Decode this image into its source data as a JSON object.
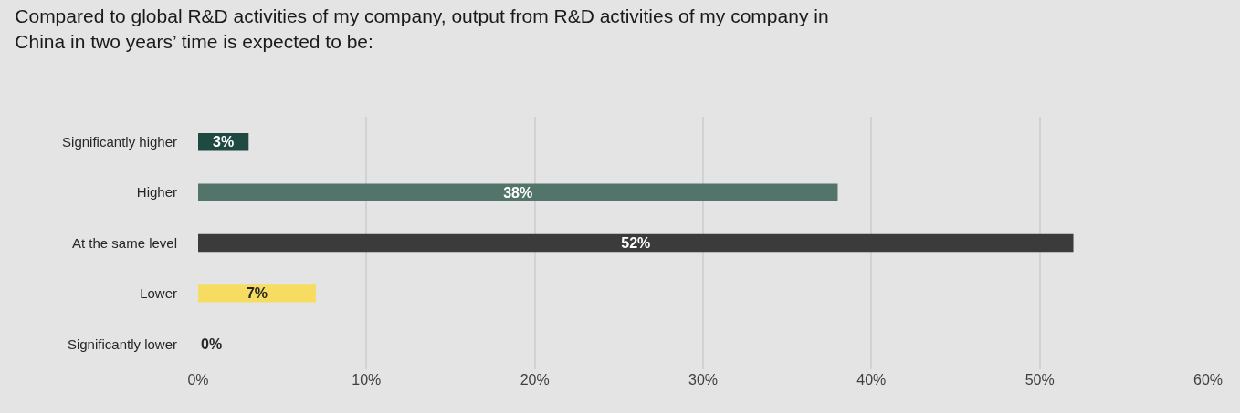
{
  "chart_data": {
    "type": "bar",
    "orientation": "horizontal",
    "title": "Compared to global R&D activities of my company, output from R&D activities of my company in\nChina in two years’ time is expected to be:",
    "categories": [
      "Significantly higher",
      "Higher",
      "At the same level",
      "Lower",
      "Significantly lower"
    ],
    "values": [
      3,
      38,
      52,
      7,
      0
    ],
    "colors": [
      "#1f4a42",
      "#53746b",
      "#3b3b3b",
      "#f7dc62",
      "#a6a6a6"
    ],
    "value_labels": [
      "3%",
      "38%",
      "52%",
      "7%",
      "0%"
    ],
    "xlim": [
      0,
      60
    ],
    "xticks": [
      {
        "value": 0,
        "label": "0%"
      },
      {
        "value": 10,
        "label": "10%"
      },
      {
        "value": 20,
        "label": "20%"
      },
      {
        "value": 30,
        "label": "30%"
      },
      {
        "value": 40,
        "label": "40%"
      },
      {
        "value": 50,
        "label": "50%"
      },
      {
        "value": 60,
        "label": "60%"
      }
    ],
    "grid": "x"
  }
}
